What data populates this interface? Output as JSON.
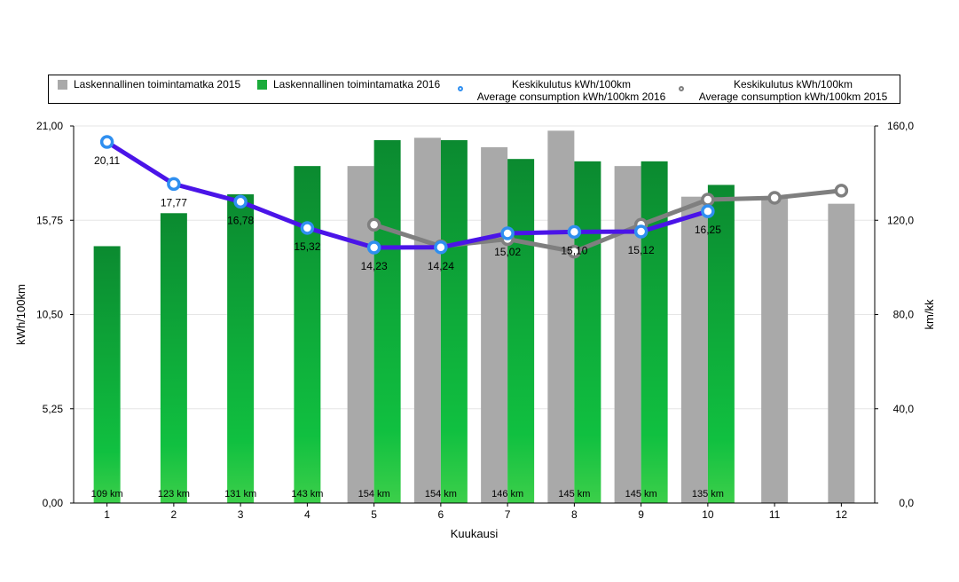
{
  "chart_data": {
    "type": "bar",
    "categories": [
      "1",
      "2",
      "3",
      "4",
      "5",
      "6",
      "7",
      "8",
      "9",
      "10",
      "11",
      "12"
    ],
    "xlabel": "Kuukausi",
    "ylabel": "kWh/100km",
    "y2label": "km/kk",
    "ylim": [
      0,
      21
    ],
    "y2lim": [
      0,
      160
    ],
    "yticks": [
      "0,00",
      "5,25",
      "10,50",
      "15,75",
      "21,00"
    ],
    "yticks_values": [
      0,
      5.25,
      10.5,
      15.75,
      21
    ],
    "y2ticks": [
      "0,0",
      "40,0",
      "80,0",
      "120,0",
      "160,0"
    ],
    "y2ticks_values": [
      0,
      40,
      80,
      120,
      160
    ],
    "series": [
      {
        "name": "Laskennallinen toimintamatka 2015",
        "type": "bar",
        "axis": "right",
        "color": "#a9a9a9",
        "values": [
          null,
          null,
          null,
          null,
          143,
          155,
          151,
          158,
          143,
          130,
          130,
          127
        ]
      },
      {
        "name": "Laskennallinen toimintamatka 2016",
        "type": "bar",
        "axis": "right",
        "color": "#1aab3a",
        "values": [
          109,
          123,
          131,
          143,
          154,
          154,
          146,
          145,
          145,
          135,
          null,
          null
        ],
        "labels": [
          "109 km",
          "123 km",
          "131 km",
          "143 km",
          "154 km",
          "154 km",
          "146 km",
          "145 km",
          "145 km",
          "135 km",
          "",
          ""
        ]
      },
      {
        "name": "Keskikulutus kWh/100km",
        "name2": "Average consumption kWh/100km 2016",
        "type": "line",
        "axis": "left",
        "color": "#4a14e8",
        "marker_color": "#2f8ff0",
        "values": [
          20.11,
          17.77,
          16.78,
          15.32,
          14.23,
          14.24,
          15.02,
          15.1,
          15.12,
          16.25,
          null,
          null
        ],
        "labels": [
          "20,11",
          "17,77",
          "16,78",
          "15,32",
          "14,23",
          "14,24",
          "15,02",
          "15,10",
          "15,12",
          "16,25",
          "",
          ""
        ]
      },
      {
        "name": "Keskikulutus kWh/100km",
        "name2": "Average consumption kWh/100km 2015",
        "type": "line",
        "axis": "left",
        "color": "#7f7f7f",
        "marker_color": "#7f7f7f",
        "values": [
          null,
          null,
          null,
          null,
          15.5,
          14.3,
          14.7,
          14.0,
          15.5,
          16.9,
          17.0,
          17.4
        ]
      }
    ],
    "legend": "top"
  }
}
